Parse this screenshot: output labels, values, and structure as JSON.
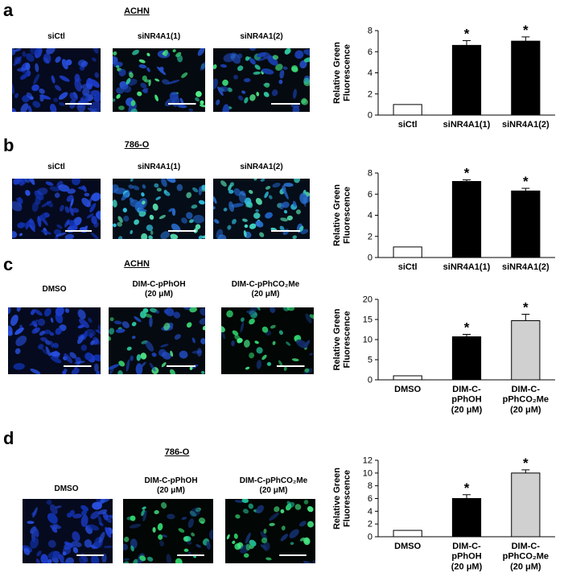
{
  "panels": [
    {
      "letter": "a",
      "title": "ACHN",
      "images": [
        {
          "label": "siCtl",
          "kind": "blue"
        },
        {
          "label": "siNR4A1(1)",
          "kind": "green"
        },
        {
          "label": "siNR4A1(2)",
          "kind": "green"
        }
      ],
      "chart_data": {
        "type": "bar",
        "categories": [
          "siCtl",
          "siNR4A1(1)",
          "siNR4A1(2)"
        ],
        "values": [
          1,
          6.6,
          7.0
        ],
        "errors": [
          0,
          0.45,
          0.4
        ],
        "significance": [
          "",
          "*",
          "*"
        ],
        "fills": [
          "#ffffff",
          "#000000",
          "#000000"
        ],
        "ylabel": "Relative Green Fluorescence",
        "ylim": [
          0,
          8
        ],
        "yticks": [
          0,
          2,
          4,
          6,
          8
        ]
      }
    },
    {
      "letter": "b",
      "title": "786-O",
      "images": [
        {
          "label": "siCtl",
          "kind": "blue"
        },
        {
          "label": "siNR4A1(1)",
          "kind": "cyan"
        },
        {
          "label": "siNR4A1(2)",
          "kind": "cyan"
        }
      ],
      "chart_data": {
        "type": "bar",
        "categories": [
          "siCtl",
          "siNR4A1(1)",
          "siNR4A1(2)"
        ],
        "values": [
          1,
          7.2,
          6.3
        ],
        "errors": [
          0,
          0.15,
          0.25
        ],
        "significance": [
          "",
          "*",
          "*"
        ],
        "fills": [
          "#ffffff",
          "#000000",
          "#000000"
        ],
        "ylabel": "Relative Green Fluorescence",
        "ylim": [
          0,
          8
        ],
        "yticks": [
          0,
          2,
          4,
          6,
          8
        ]
      }
    },
    {
      "letter": "c",
      "title": "ACHN",
      "images": [
        {
          "label": "DMSO",
          "kind": "blue"
        },
        {
          "label": "DIM-C-pPhOH\n(20 μM)",
          "kind": "green"
        },
        {
          "label": "DIM-C-pPhCO₂Me\n(20 μM)",
          "kind": "greendark"
        }
      ],
      "chart_data": {
        "type": "bar",
        "categories": [
          "DMSO",
          "DIM-C-\npPhOH\n(20 μM)",
          "DIM-C-\npPhCO₂Me\n(20 μM)"
        ],
        "values": [
          1,
          10.7,
          14.7
        ],
        "errors": [
          0,
          0.6,
          1.6
        ],
        "significance": [
          "",
          "*",
          "*"
        ],
        "fills": [
          "#ffffff",
          "#000000",
          "#d0d0d0"
        ],
        "ylabel": "Relative Green Fluorescence",
        "ylim": [
          0,
          20
        ],
        "yticks": [
          0,
          5,
          10,
          15,
          20
        ]
      }
    },
    {
      "letter": "d",
      "title": "786-O",
      "images": [
        {
          "label": "DMSO",
          "kind": "blue"
        },
        {
          "label": "DIM-C-pPhOH\n(20 μM)",
          "kind": "greendark"
        },
        {
          "label": "DIM-C-pPhCO₂Me\n(20 μM)",
          "kind": "greendark"
        }
      ],
      "chart_data": {
        "type": "bar",
        "categories": [
          "DMSO",
          "DIM-C-\npPhOH\n(20 μM)",
          "DIM-C-\npPhCO₂Me\n(20 μM)"
        ],
        "values": [
          1,
          6.0,
          10.0
        ],
        "errors": [
          0,
          0.6,
          0.5
        ],
        "significance": [
          "",
          "*",
          "*"
        ],
        "fills": [
          "#ffffff",
          "#000000",
          "#d0d0d0"
        ],
        "ylabel": "Relative Green Fluorescence",
        "ylim": [
          0,
          12
        ],
        "yticks": [
          0,
          2,
          4,
          6,
          8,
          10,
          12
        ]
      }
    }
  ]
}
